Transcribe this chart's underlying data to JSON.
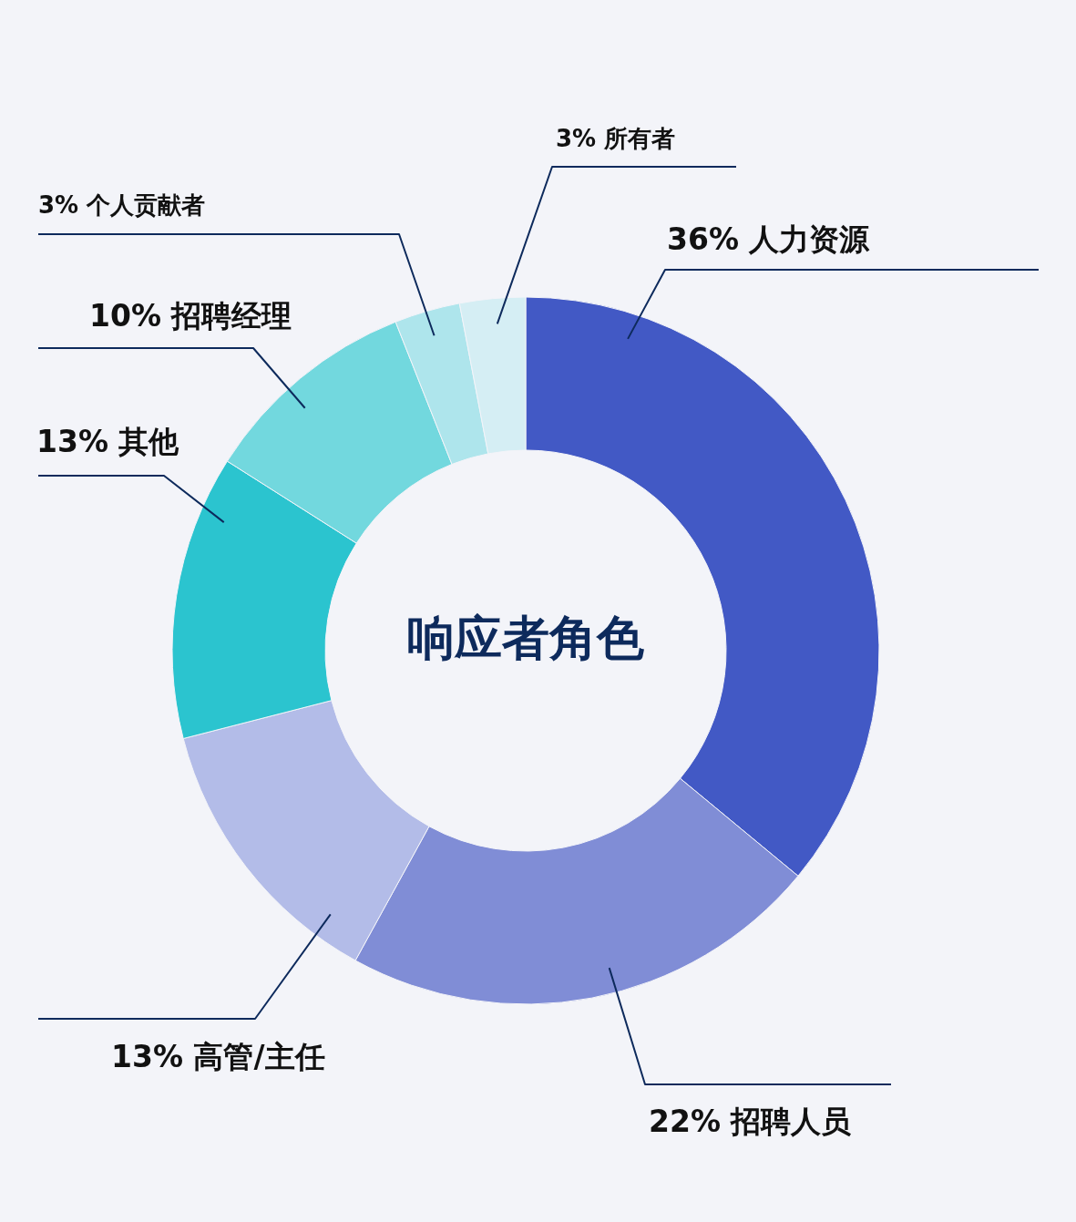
{
  "chart_data": {
    "type": "donut",
    "title": "响应者角色",
    "categories": [
      "人力资源",
      "招聘人员",
      "高管/主任",
      "其他",
      "招聘经理",
      "个人贡献者",
      "所有者"
    ],
    "values": [
      36,
      22,
      13,
      13,
      10,
      3,
      3
    ],
    "value_labels": [
      "36%",
      "22%",
      "13%",
      "13%",
      "10%",
      "3%",
      "3%"
    ],
    "colors": [
      "#4259c5",
      "#808dd6",
      "#b3bce8",
      "#2bc4cf",
      "#72d8de",
      "#aee5ec",
      "#d5eef4"
    ]
  }
}
